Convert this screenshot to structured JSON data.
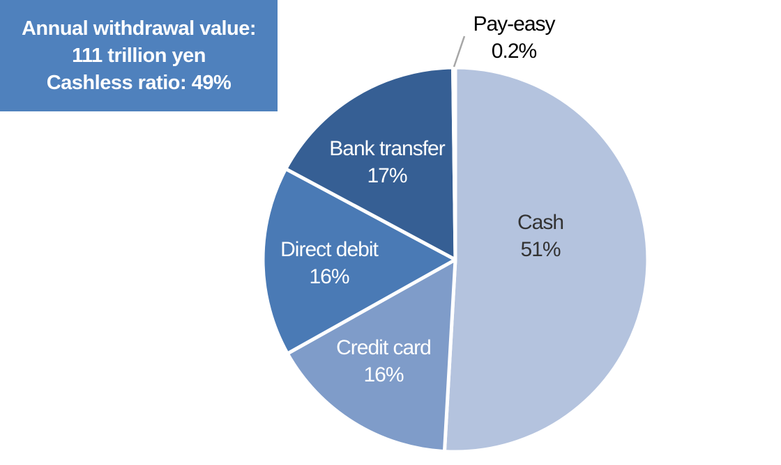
{
  "info_box": {
    "line1": "Annual withdrawal value:",
    "line2": "111 trillion yen",
    "line3": "Cashless ratio: 49%"
  },
  "chart_data": {
    "type": "pie",
    "start": "top",
    "direction": "clockwise",
    "slices": [
      {
        "label": "Cash",
        "value_label": "51%",
        "value": 51,
        "color": "#b4c3de",
        "text_color": "#333333"
      },
      {
        "label": "Credit card",
        "value_label": "16%",
        "value": 16,
        "color": "#7f9cc9",
        "text_color": "#ffffff"
      },
      {
        "label": "Direct debit",
        "value_label": "16%",
        "value": 16,
        "color": "#4a7ab5",
        "text_color": "#ffffff"
      },
      {
        "label": "Bank transfer",
        "value_label": "17%",
        "value": 17,
        "color": "#365f94",
        "text_color": "#ffffff"
      },
      {
        "label": "Pay-easy",
        "value_label": "0.2%",
        "value": 0.2,
        "color": "#365f94",
        "text_color": "#000000"
      }
    ]
  }
}
